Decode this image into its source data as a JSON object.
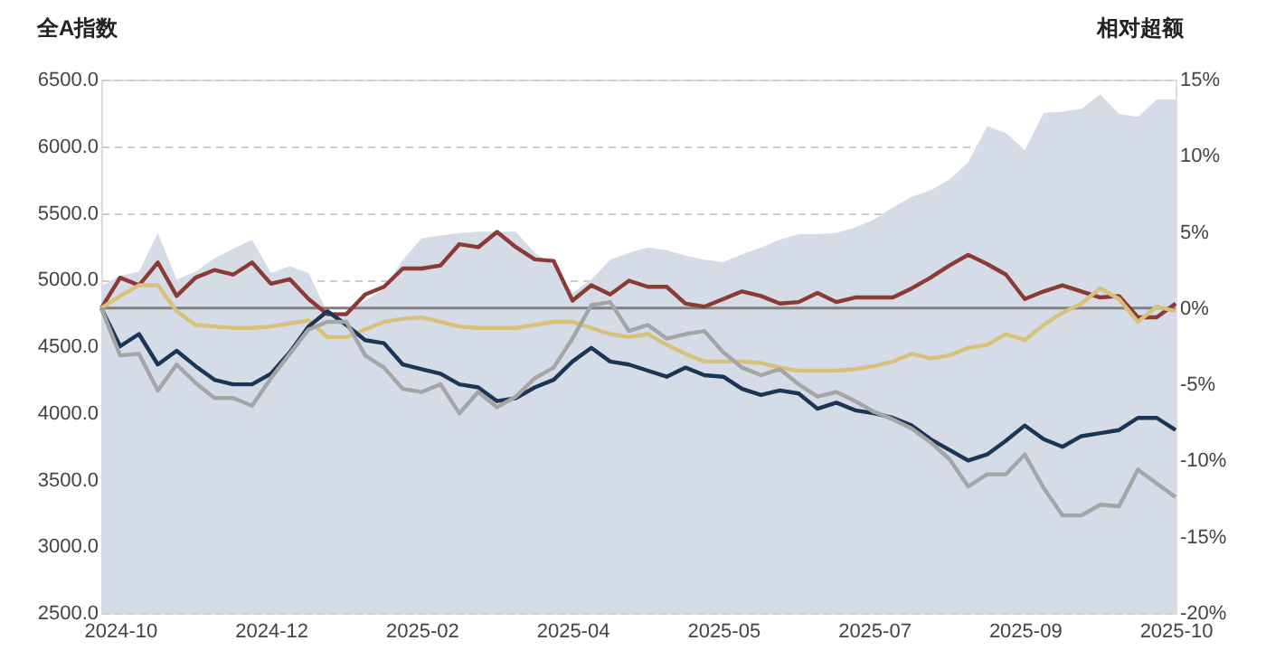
{
  "chart_data": {
    "type": "line",
    "ylabel": "全A指数",
    "y2label": "相对超额",
    "categories": [
      null,
      "2024-10",
      null,
      null,
      null,
      null,
      null,
      null,
      null,
      "2024-12",
      null,
      null,
      null,
      null,
      null,
      null,
      null,
      "2025-02",
      null,
      null,
      null,
      null,
      null,
      null,
      null,
      "2025-04",
      null,
      null,
      null,
      null,
      null,
      null,
      null,
      "2025-05",
      null,
      null,
      null,
      null,
      null,
      null,
      null,
      "2025-07",
      null,
      null,
      null,
      null,
      null,
      null,
      null,
      "2025-09",
      null,
      null,
      null,
      null,
      null,
      null,
      null,
      "2025-10"
    ],
    "ylim": [
      2500,
      6500
    ],
    "yticks": [
      {
        "value": 2500,
        "label": "2500.0"
      },
      {
        "value": 3000,
        "label": "3000.0"
      },
      {
        "value": 3500,
        "label": "3500.0"
      },
      {
        "value": 4000,
        "label": "4000.0"
      },
      {
        "value": 4500,
        "label": "4500.0"
      },
      {
        "value": 5000,
        "label": "5000.0"
      },
      {
        "value": 5500,
        "label": "5500.0"
      },
      {
        "value": 6000,
        "label": "6000.0"
      },
      {
        "value": 6500,
        "label": "6500.0"
      }
    ],
    "y2lim": [
      -20,
      15
    ],
    "y2ticks": [
      {
        "value": -20,
        "label": "-20%"
      },
      {
        "value": -15,
        "label": "-15%"
      },
      {
        "value": -10,
        "label": "-10%"
      },
      {
        "value": -5,
        "label": "-5%"
      },
      {
        "value": 0,
        "label": "0%"
      },
      {
        "value": 5,
        "label": "5%"
      },
      {
        "value": 10,
        "label": "10%"
      },
      {
        "value": 15,
        "label": "15%"
      }
    ],
    "grid": "y",
    "ref_lines": [
      {
        "axis": "y2",
        "value": 0,
        "color": "#808080"
      }
    ],
    "series": [
      {
        "type": "area",
        "color": "#d5dbe7",
        "values": [
          4950,
          5030,
          5060,
          5350,
          5000,
          5060,
          5160,
          5230,
          5300,
          5050,
          5100,
          5050,
          4750,
          4760,
          4840,
          4930,
          5150,
          5310,
          5330,
          5350,
          5360,
          5360,
          5360,
          5200,
          5110,
          4900,
          5000,
          5150,
          5200,
          5240,
          5220,
          5180,
          5150,
          5130,
          5190,
          5240,
          5300,
          5340,
          5340,
          5350,
          5390,
          5450,
          5540,
          5620,
          5670,
          5750,
          5880,
          6150,
          6100,
          5970,
          6250,
          6260,
          6280,
          6390,
          6240,
          6220,
          6350,
          6350
        ]
      },
      {
        "axis": "y2",
        "color": "#8b3a36",
        "values": [
          0,
          2.0,
          1.5,
          3,
          0.8,
          2,
          2.5,
          2.2,
          3,
          1.6,
          1.9,
          0.6,
          -0.4,
          -0.4,
          0.9,
          1.4,
          2.6,
          2.6,
          2.8,
          4.2,
          4,
          5,
          4,
          3.2,
          3.1,
          0.5,
          1.5,
          0.9,
          1.8,
          1.4,
          1.4,
          0.3,
          0.1,
          0.6,
          1.1,
          0.8,
          0.3,
          0.4,
          1.0,
          0.4,
          0.7,
          0.7,
          0.7,
          1.3,
          2,
          2.8,
          3.5,
          2.9,
          2.2,
          0.6,
          1.1,
          1.5,
          1.1,
          0.7,
          0.8,
          -0.6,
          -0.6,
          0.3
        ]
      },
      {
        "axis": "y2",
        "color": "#d8c27a",
        "values": [
          0,
          0.8,
          1.5,
          1.5,
          -0.2,
          -1.1,
          -1.2,
          -1.3,
          -1.3,
          -1.2,
          -1.0,
          -0.8,
          -1.9,
          -1.9,
          -1.4,
          -0.9,
          -0.7,
          -0.6,
          -0.9,
          -1.2,
          -1.3,
          -1.3,
          -1.3,
          -1.1,
          -0.9,
          -0.9,
          -1.3,
          -1.7,
          -1.9,
          -1.7,
          -2.4,
          -3.0,
          -3.5,
          -3.5,
          -3.5,
          -3.6,
          -3.9,
          -4.1,
          -4.1,
          -4.1,
          -4.0,
          -3.8,
          -3.5,
          -3.0,
          -3.3,
          -3.1,
          -2.6,
          -2.4,
          -1.7,
          -2.1,
          -1.1,
          -0.3,
          0.3,
          1.3,
          0.6,
          -0.9,
          0.1,
          -0.2
        ]
      },
      {
        "axis": "y2",
        "color": "#1c3557",
        "values": [
          0,
          -2.5,
          -1.7,
          -3.7,
          -2.8,
          -3.8,
          -4.7,
          -5,
          -5,
          -4.3,
          -2.9,
          -1.2,
          -0.2,
          -1.1,
          -2.1,
          -2.3,
          -3.7,
          -4.0,
          -4.3,
          -5.0,
          -5.2,
          -6.1,
          -5.9,
          -5.2,
          -4.7,
          -3.5,
          -2.6,
          -3.5,
          -3.7,
          -4.1,
          -4.5,
          -3.9,
          -4.4,
          -4.5,
          -5.3,
          -5.7,
          -5.4,
          -5.6,
          -6.6,
          -6.2,
          -6.7,
          -6.9,
          -7.2,
          -7.7,
          -8.6,
          -9.3,
          -10,
          -9.6,
          -8.7,
          -7.7,
          -8.6,
          -9.1,
          -8.4,
          -8.2,
          -8,
          -7.2,
          -7.2,
          -8
        ]
      },
      {
        "axis": "y2",
        "color": "#a5a5a5",
        "values": [
          0,
          -3.1,
          -3.0,
          -5.4,
          -3.7,
          -4.9,
          -5.9,
          -5.9,
          -6.4,
          -4.6,
          -3.0,
          -1.4,
          -0.9,
          -0.9,
          -3.1,
          -3.9,
          -5.3,
          -5.5,
          -5,
          -6.9,
          -5.5,
          -6.5,
          -5.8,
          -4.6,
          -3.9,
          -2.0,
          0.2,
          0.4,
          -1.5,
          -1.1,
          -2.0,
          -1.7,
          -1.5,
          -2.9,
          -3.9,
          -4.4,
          -4.0,
          -5.0,
          -5.8,
          -5.5,
          -6.1,
          -6.8,
          -7.3,
          -7.9,
          -8.8,
          -9.9,
          -11.7,
          -10.9,
          -10.9,
          -9.6,
          -11.8,
          -13.6,
          -13.6,
          -12.9,
          -13,
          -10.6,
          -11.5,
          -12.4
        ]
      }
    ]
  }
}
